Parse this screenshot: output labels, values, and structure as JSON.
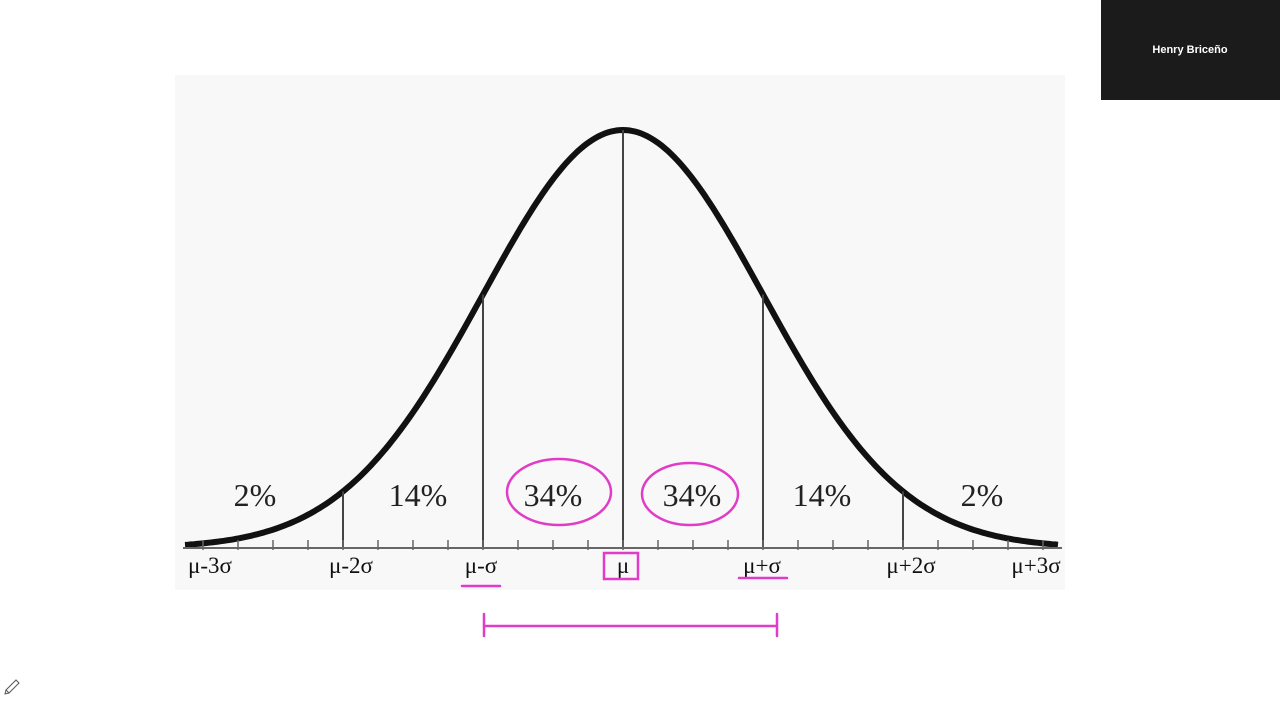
{
  "participant": {
    "name": "Henry Briceño"
  },
  "diagram": {
    "region_labels": [
      "2%",
      "14%",
      "34%",
      "34%",
      "14%",
      "2%"
    ],
    "axis_labels": [
      "μ-3σ",
      "μ-2σ",
      "μ-σ",
      "μ",
      "μ+σ",
      "μ+2σ",
      "μ+3σ"
    ]
  }
}
